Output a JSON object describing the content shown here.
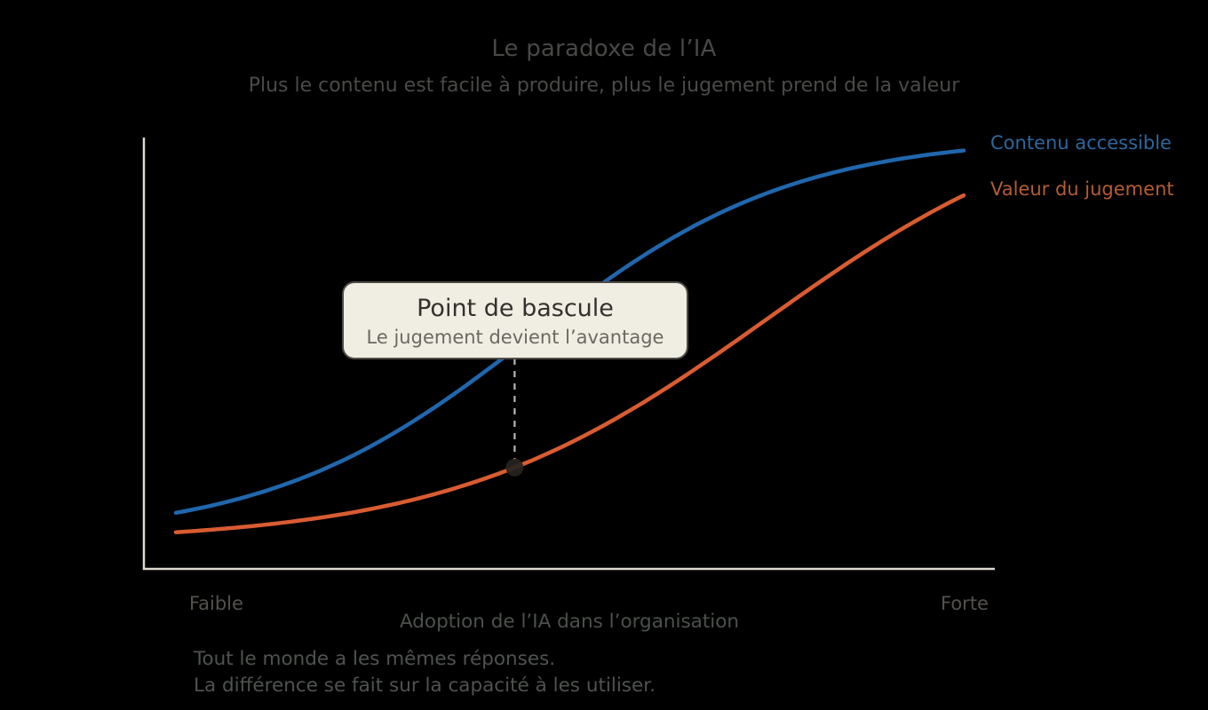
{
  "chart_data": {
    "type": "line",
    "title": "Le paradoxe de l’IA",
    "subtitle": "Plus le contenu est facile à produire, plus le jugement prend de la valeur",
    "xlabel": "Adoption de l’IA dans l’organisation",
    "x_tick_labels": {
      "left": "Faible",
      "right": "Forte"
    },
    "x_range_qualitative": [
      "Faible",
      "Forte"
    ],
    "grid": false,
    "legend_position": "right-of-curve-ends",
    "axis_color": "#dcd9d0",
    "series": [
      {
        "name": "Contenu accessible",
        "color": "#2067ad",
        "label_color": "#2d679c",
        "shape": "sigmoid",
        "midpoint": 0.45,
        "steepness": 6,
        "y_start": 0.13,
        "y_end": 0.97
      },
      {
        "name": "Valeur du jugement",
        "color": "#d95c31",
        "label_color": "#b45c34",
        "shape": "sigmoid",
        "midpoint": 0.75,
        "steepness": 5,
        "y_start": 0.085,
        "y_end": 0.866
      }
    ],
    "annotation": {
      "title": "Point de bascule",
      "subtitle": "Le jugement devient l’avantage",
      "marker_t": 0.43,
      "marker_series": "Valeur du jugement",
      "bg": "#f0ede3",
      "border_color": "#4f4c46",
      "connector_color": "#b9b7b1",
      "marker_color": "#272420"
    },
    "footnote_lines": [
      "Tout le monde a les mêmes réponses.",
      "La différence se fait sur la capacité à les utiliser."
    ]
  }
}
